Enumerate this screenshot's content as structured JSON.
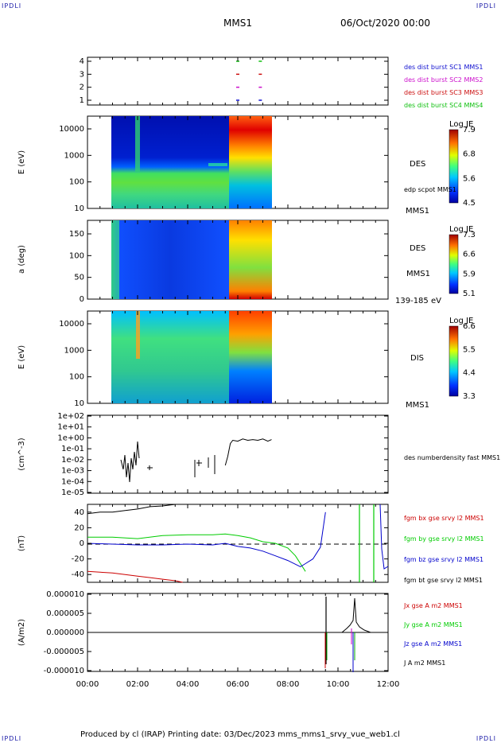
{
  "corners": {
    "tl": "IPDLI",
    "tr": "IPDLI",
    "bl": "IPDLI",
    "br": "IPDLI"
  },
  "header": {
    "mission": "MMS1",
    "datetime": "06/Oct/2020 00:00"
  },
  "footer": {
    "text": "Produced by cl (IRAP)   Printing date: 03/Dec/2023   mms_mms1_srvy_vue_web1.cl"
  },
  "colors": {
    "c1": "#1010d0",
    "c2": "#cc10cc",
    "c3": "#cc1010",
    "c4": "#10c010",
    "bx": "#cc0000",
    "by": "#00cc00",
    "bz": "#0000cc",
    "bt": "#000000"
  },
  "chart_data": [
    {
      "type": "scatter",
      "panel": "burst",
      "yticks": [
        "4",
        "3",
        "2",
        "1"
      ],
      "legend": [
        "des dist burst SC1 MMS1",
        "des dist burst SC2 MMS2",
        "des dist burst SC3 MMS3",
        "des dist burst SC4 MMS4"
      ],
      "series": [
        {
          "name": "des dist burst SC1 MMS1",
          "y": 1,
          "x": [
            6.0,
            6.9
          ]
        },
        {
          "name": "des dist burst SC2 MMS2",
          "y": 2,
          "x": [
            6.0,
            6.9
          ]
        },
        {
          "name": "des dist burst SC3 MMS3",
          "y": 3,
          "x": [
            6.0,
            6.9
          ]
        },
        {
          "name": "des dist burst SC4 MMS4",
          "y": 4,
          "x": [
            6.0,
            6.9
          ]
        }
      ]
    },
    {
      "type": "heatmap",
      "panel": "des-energy",
      "ylabel": "E (eV)",
      "yticks": [
        "10000",
        "1000",
        "100",
        "10"
      ],
      "label": "DES",
      "sublabel": "edp scpot MMS1",
      "bottom_label": "MMS1",
      "colorbar": {
        "title": "Log JE",
        "ticks": [
          "7.9",
          "6.8",
          "5.6",
          "4.5"
        ]
      },
      "data_x_range": [
        0.95,
        7.35
      ]
    },
    {
      "type": "heatmap",
      "panel": "des-pitch",
      "ylabel": "a (deg)",
      "yticks": [
        "150",
        "100",
        "50",
        "0"
      ],
      "label": "DES",
      "sublabel": "MMS1",
      "bottom_label": "139-185 eV",
      "colorbar": {
        "title": "Log JE",
        "ticks": [
          "7.3",
          "6.6",
          "5.9",
          "5.1"
        ]
      },
      "data_x_range": [
        0.95,
        7.35
      ]
    },
    {
      "type": "heatmap",
      "panel": "dis-energy",
      "ylabel": "E (eV)",
      "yticks": [
        "10000",
        "1000",
        "100",
        "10"
      ],
      "label": "DIS",
      "bottom_label": "MMS1",
      "colorbar": {
        "title": "Log JE",
        "ticks": [
          "6.6",
          "5.5",
          "4.4",
          "3.3"
        ]
      },
      "data_x_range": [
        0.95,
        7.35
      ]
    },
    {
      "type": "line",
      "panel": "density",
      "ylabel": "(cm^-3)",
      "yticks": [
        "1e+02",
        "1e+01",
        "1e+00",
        "1e-01",
        "1e-02",
        "1e-03",
        "1e-04",
        "1e-05"
      ],
      "legend": [
        "des numberdensity fast MMS1"
      ],
      "series": [
        {
          "name": "des numberdensity fast MMS1",
          "x": [
            5.5,
            5.6,
            5.7,
            5.8,
            6.0,
            6.2,
            6.4,
            6.6,
            6.8,
            7.0,
            7.2,
            7.35
          ],
          "y": [
            0.003,
            0.02,
            0.3,
            0.6,
            0.5,
            0.8,
            0.6,
            0.7,
            0.6,
            0.8,
            0.5,
            0.7
          ]
        }
      ]
    },
    {
      "type": "line",
      "panel": "magnetic-field",
      "ylabel": "(nT)",
      "yticks": [
        "40",
        "20",
        "0",
        "-20",
        "-40"
      ],
      "ylim": [
        -50,
        50
      ],
      "legend": [
        "fgm bx gse srvy l2 MMS1",
        "fgm by gse srvy l2 MMS1",
        "fgm bz gse srvy l2 MMS1",
        "fgm bt gse srvy l2 MMS1"
      ],
      "series": [
        {
          "name": "fgm bx gse srvy l2 MMS1",
          "x": [
            0,
            0.5,
            1,
            1.5,
            2,
            2.5,
            3,
            3.5,
            3.8
          ],
          "y": [
            -36,
            -37,
            -38,
            -40,
            -42,
            -44,
            -46,
            -48,
            -50
          ]
        },
        {
          "name": "fgm by gse srvy l2 MMS1",
          "x": [
            0,
            1,
            2,
            3,
            4,
            5,
            5.5,
            6,
            6.5,
            7,
            7.5,
            8,
            8.3,
            8.7
          ],
          "y": [
            8,
            8,
            6,
            10,
            11,
            11,
            12,
            10,
            7,
            2,
            0,
            -6,
            -16,
            -36
          ]
        },
        {
          "name": "fgm bz gse srvy l2 MMS1",
          "x": [
            0,
            1,
            2,
            3,
            4,
            5,
            5.5,
            6,
            6.5,
            7,
            7.5,
            8,
            8.5,
            8.7,
            9,
            9.3,
            9.5
          ],
          "y": [
            0,
            -1,
            -2,
            -2,
            -1,
            -2,
            0,
            -4,
            -6,
            -10,
            -16,
            -22,
            -30,
            -26,
            -20,
            -5,
            40
          ]
        },
        {
          "name": "fgm bt gse srvy l2 MMS1",
          "x": [
            0,
            0.5,
            1,
            1.5,
            2,
            2.5,
            3,
            3.5
          ],
          "y": [
            38,
            40,
            40,
            42,
            44,
            47,
            48,
            50
          ]
        }
      ]
    },
    {
      "type": "line",
      "panel": "current-density",
      "ylabel": "(A/m2)",
      "yticks": [
        "0.000010",
        "0.000005",
        "0.000000",
        "-0.000005",
        "-0.000010"
      ],
      "ylim": [
        -1e-05,
        1e-05
      ],
      "xticks": [
        "00:00",
        "02:00",
        "04:00",
        "06:00",
        "08:00",
        "10:00",
        "12:00"
      ],
      "legend": [
        "Jx gse A m2 MMS1",
        "Jy gse A m2 MMS1",
        "Jz gse A m2 MMS1",
        "J A m2 MMS1"
      ]
    }
  ]
}
